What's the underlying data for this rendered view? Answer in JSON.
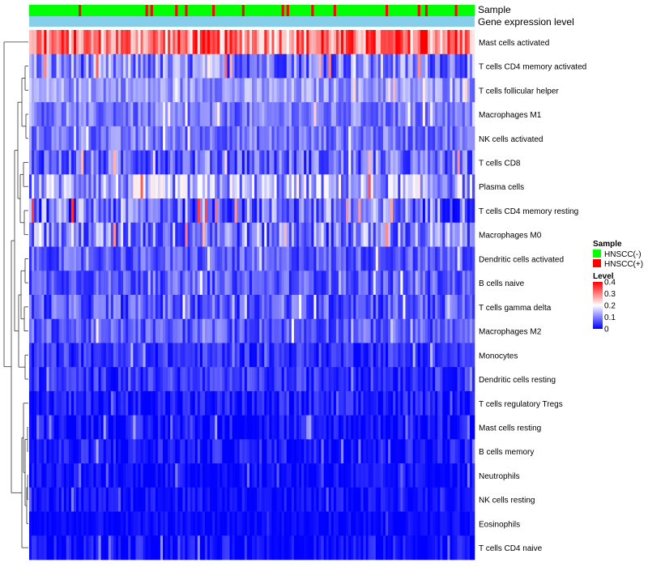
{
  "chart_data": {
    "type": "heatmap",
    "annotation_labels": {
      "sample": "Sample",
      "gene_expression": "Gene expression level"
    },
    "rows": [
      {
        "name": "Mast cells activated",
        "mean": 0.3,
        "spread": 0.1
      },
      {
        "name": "T cells CD4 memory activated",
        "mean": 0.1,
        "spread": 0.08
      },
      {
        "name": "T cells follicular helper",
        "mean": 0.12,
        "spread": 0.05
      },
      {
        "name": "Macrophages M1",
        "mean": 0.09,
        "spread": 0.05
      },
      {
        "name": "NK cells activated",
        "mean": 0.09,
        "spread": 0.05
      },
      {
        "name": "T cells CD8",
        "mean": 0.08,
        "spread": 0.07
      },
      {
        "name": "Plasma cells",
        "mean": 0.13,
        "spread": 0.09
      },
      {
        "name": "T cells CD4 memory resting",
        "mean": 0.09,
        "spread": 0.09
      },
      {
        "name": "Macrophages M0",
        "mean": 0.1,
        "spread": 0.09
      },
      {
        "name": "Dendritic cells activated",
        "mean": 0.07,
        "spread": 0.05
      },
      {
        "name": "B cells naive",
        "mean": 0.07,
        "spread": 0.05
      },
      {
        "name": "T cells gamma delta",
        "mean": 0.07,
        "spread": 0.06
      },
      {
        "name": "Macrophages M2",
        "mean": 0.07,
        "spread": 0.05
      },
      {
        "name": "Monocytes",
        "mean": 0.04,
        "spread": 0.04
      },
      {
        "name": "Dendritic cells resting",
        "mean": 0.04,
        "spread": 0.04
      },
      {
        "name": "T cells regulatory  Tregs",
        "mean": 0.02,
        "spread": 0.04
      },
      {
        "name": "Mast cells resting",
        "mean": 0.015,
        "spread": 0.04
      },
      {
        "name": "B cells memory",
        "mean": 0.02,
        "spread": 0.04
      },
      {
        "name": "Neutrophils",
        "mean": 0.01,
        "spread": 0.03
      },
      {
        "name": "NK cells resting",
        "mean": 0.01,
        "spread": 0.03
      },
      {
        "name": "Eosinophils",
        "mean": 0.005,
        "spread": 0.02
      },
      {
        "name": "T cells CD4 naive",
        "mean": 0.01,
        "spread": 0.04
      }
    ],
    "n_samples": 180,
    "positive_fraction": 0.12,
    "color_scale": {
      "stops": [
        {
          "value": 0,
          "color": "#0000ff"
        },
        {
          "value": 0.2,
          "color": "#ffffff"
        },
        {
          "value": 0.4,
          "color": "#ff0000"
        }
      ],
      "min": 0,
      "max": 0.4
    },
    "legend": {
      "sample": {
        "title": "Sample",
        "items": [
          {
            "label": "HNSCC(-)",
            "color": "#00ff00"
          },
          {
            "label": "HNSCC(+)",
            "color": "#ff0000"
          }
        ]
      },
      "level": {
        "title": "Level",
        "ticks": [
          {
            "value": 0.4,
            "label": "0.4"
          },
          {
            "value": 0.3,
            "label": "0.3"
          },
          {
            "value": 0.2,
            "label": "0.2"
          },
          {
            "value": 0.1,
            "label": "0.1"
          },
          {
            "value": 0,
            "label": "0"
          }
        ]
      }
    },
    "gene_expression_color": "#87ceeb",
    "dendrogram_color": "#333333"
  }
}
